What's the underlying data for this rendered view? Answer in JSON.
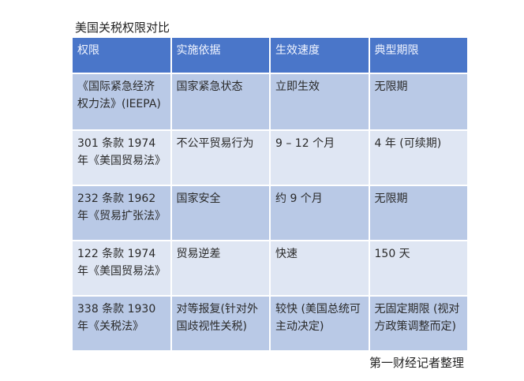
{
  "title": "美国关税权限对比",
  "table": {
    "headers": [
      "权限",
      "实施依据",
      "生效速度",
      "典型期限"
    ],
    "rows": [
      [
        "《国际紧急经济权力法》(IEEPA)",
        "国家紧急状态",
        "立即生效",
        "无限期"
      ],
      [
        "301 条款 1974 年《美国贸易法》",
        "不公平贸易行为",
        "9 – 12 个月",
        "4 年 (可续期)"
      ],
      [
        "232 条款 1962 年《贸易扩张法》",
        "国家安全",
        "约 9 个月",
        "无限期"
      ],
      [
        "122 条款 1974 年《美国贸易法》",
        "贸易逆差",
        "快速",
        "150 天"
      ],
      [
        "338 条款 1930 年《关税法》",
        "对等报复(针对外国歧视性关税)",
        "较快 (美国总统可主动决定)",
        "无固定期限 (视对方政策调整而定)"
      ]
    ]
  },
  "caption": "第一财经记者整理",
  "colors": {
    "header": "#4a76c9",
    "row_odd": "#b9c9e6",
    "row_even": "#dfe6f3"
  }
}
